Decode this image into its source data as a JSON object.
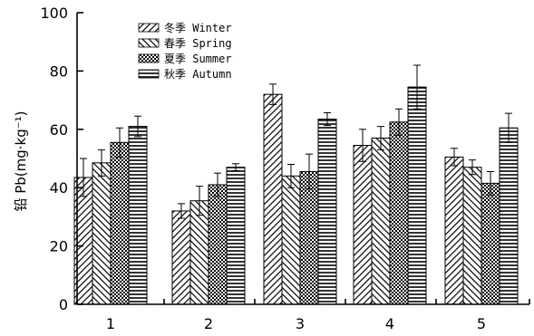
{
  "chart_data": {
    "type": "bar",
    "categories": [
      "1",
      "2",
      "3",
      "4",
      "5"
    ],
    "ylabel": "铅 Pb(mg·kg⁻¹)",
    "ylim": [
      0,
      100
    ],
    "yticks": [
      0,
      20,
      40,
      60,
      80,
      100
    ],
    "legend_position": "top-left",
    "series": [
      {
        "name": "冬季 Winter",
        "pattern": "diagonal-right",
        "values": [
          43.5,
          32,
          72,
          54.5,
          50.5
        ],
        "errors": [
          6.5,
          2.5,
          3.5,
          5.5,
          3
        ]
      },
      {
        "name": "春季 Spring",
        "pattern": "diagonal-left",
        "values": [
          48.5,
          35.5,
          44,
          57,
          47
        ],
        "errors": [
          4.5,
          5,
          4,
          4,
          2.5
        ]
      },
      {
        "name": "夏季 Summer",
        "pattern": "dots",
        "values": [
          55.5,
          41,
          45.5,
          62.5,
          41.5
        ],
        "errors": [
          5,
          4,
          6,
          4.5,
          4
        ]
      },
      {
        "name": "秋季 Autumn",
        "pattern": "horizontal",
        "values": [
          61,
          47,
          63.5,
          74.5,
          60.5
        ],
        "errors": [
          3.5,
          1.2,
          2.2,
          7.5,
          5
        ]
      }
    ]
  }
}
